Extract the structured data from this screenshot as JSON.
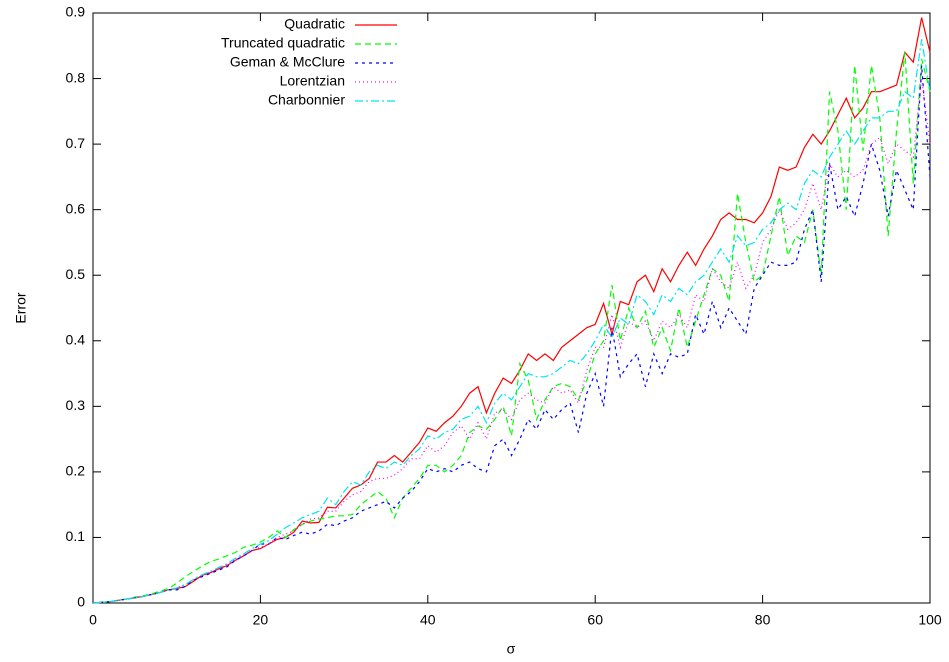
{
  "chart_data": {
    "type": "line",
    "xlabel": "σ",
    "ylabel": "Error",
    "xlim": [
      0,
      100
    ],
    "xticks": [
      0,
      20,
      40,
      60,
      80,
      100
    ],
    "ylim": [
      0,
      0.9
    ],
    "yticks": [
      0,
      0.1,
      0.2,
      0.3,
      0.4,
      0.5,
      0.6,
      0.7,
      0.8,
      0.9
    ],
    "legend": "upper-left",
    "x": [
      0,
      1,
      2,
      3,
      4,
      5,
      6,
      7,
      8,
      9,
      10,
      11,
      12,
      13,
      14,
      15,
      16,
      17,
      18,
      19,
      20,
      21,
      22,
      23,
      24,
      25,
      26,
      27,
      28,
      29,
      30,
      31,
      32,
      33,
      34,
      35,
      36,
      37,
      38,
      39,
      40,
      41,
      42,
      43,
      44,
      45,
      46,
      47,
      48,
      49,
      50,
      51,
      52,
      53,
      54,
      55,
      56,
      57,
      58,
      59,
      60,
      61,
      62,
      63,
      64,
      65,
      66,
      67,
      68,
      69,
      70,
      71,
      72,
      73,
      74,
      75,
      76,
      77,
      78,
      79,
      80,
      81,
      82,
      83,
      84,
      85,
      86,
      87,
      88,
      89,
      90,
      91,
      92,
      93,
      94,
      95,
      96,
      97,
      98,
      99,
      100
    ],
    "series": [
      {
        "name": "Quadratic",
        "color": "#ff0000",
        "values": [
          0,
          0.001,
          0.002,
          0.004,
          0.006,
          0.008,
          0.01,
          0.013,
          0.016,
          0.02,
          0.022,
          0.025,
          0.033,
          0.042,
          0.046,
          0.052,
          0.057,
          0.065,
          0.072,
          0.08,
          0.083,
          0.09,
          0.097,
          0.1,
          0.108,
          0.125,
          0.122,
          0.123,
          0.146,
          0.145,
          0.16,
          0.175,
          0.18,
          0.19,
          0.215,
          0.215,
          0.225,
          0.215,
          0.23,
          0.245,
          0.267,
          0.262,
          0.275,
          0.285,
          0.3,
          0.32,
          0.33,
          0.29,
          0.32,
          0.343,
          0.335,
          0.355,
          0.38,
          0.37,
          0.38,
          0.37,
          0.39,
          0.4,
          0.41,
          0.42,
          0.425,
          0.457,
          0.41,
          0.46,
          0.455,
          0.49,
          0.5,
          0.475,
          0.51,
          0.49,
          0.515,
          0.535,
          0.515,
          0.54,
          0.56,
          0.585,
          0.595,
          0.585,
          0.585,
          0.58,
          0.595,
          0.62,
          0.665,
          0.66,
          0.665,
          0.695,
          0.715,
          0.7,
          0.72,
          0.745,
          0.77,
          0.74,
          0.755,
          0.78,
          0.78,
          0.785,
          0.79,
          0.84,
          0.825,
          0.893,
          0.84
        ]
      },
      {
        "name": "Truncated quadratic",
        "color": "#00ff00",
        "values": [
          0,
          0.001,
          0.002,
          0.004,
          0.006,
          0.009,
          0.011,
          0.014,
          0.018,
          0.022,
          0.03,
          0.04,
          0.048,
          0.056,
          0.063,
          0.067,
          0.072,
          0.077,
          0.085,
          0.088,
          0.093,
          0.1,
          0.11,
          0.1,
          0.112,
          0.12,
          0.125,
          0.128,
          0.13,
          0.133,
          0.133,
          0.135,
          0.15,
          0.16,
          0.17,
          0.16,
          0.13,
          0.16,
          0.175,
          0.19,
          0.21,
          0.21,
          0.2,
          0.21,
          0.225,
          0.26,
          0.27,
          0.265,
          0.28,
          0.3,
          0.255,
          0.365,
          0.34,
          0.28,
          0.31,
          0.33,
          0.335,
          0.33,
          0.31,
          0.34,
          0.38,
          0.4,
          0.485,
          0.4,
          0.45,
          0.42,
          0.445,
          0.39,
          0.42,
          0.385,
          0.45,
          0.39,
          0.43,
          0.47,
          0.51,
          0.5,
          0.46,
          0.625,
          0.55,
          0.49,
          0.5,
          0.56,
          0.62,
          0.53,
          0.56,
          0.55,
          0.6,
          0.5,
          0.78,
          0.72,
          0.6,
          0.82,
          0.69,
          0.82,
          0.74,
          0.56,
          0.72,
          0.84,
          0.64,
          0.83,
          0.78
        ]
      },
      {
        "name": "Geman & McClure",
        "color": "#0000ff",
        "values": [
          0,
          0.001,
          0.002,
          0.004,
          0.006,
          0.008,
          0.01,
          0.013,
          0.016,
          0.02,
          0.02,
          0.025,
          0.035,
          0.04,
          0.045,
          0.05,
          0.055,
          0.065,
          0.072,
          0.08,
          0.09,
          0.09,
          0.1,
          0.097,
          0.103,
          0.108,
          0.105,
          0.11,
          0.12,
          0.118,
          0.125,
          0.13,
          0.14,
          0.145,
          0.15,
          0.155,
          0.145,
          0.16,
          0.17,
          0.185,
          0.205,
          0.2,
          0.205,
          0.2,
          0.21,
          0.215,
          0.205,
          0.2,
          0.24,
          0.25,
          0.225,
          0.25,
          0.28,
          0.265,
          0.295,
          0.28,
          0.295,
          0.305,
          0.26,
          0.32,
          0.35,
          0.3,
          0.42,
          0.345,
          0.365,
          0.38,
          0.33,
          0.38,
          0.35,
          0.38,
          0.375,
          0.38,
          0.44,
          0.41,
          0.46,
          0.42,
          0.45,
          0.43,
          0.41,
          0.48,
          0.5,
          0.52,
          0.515,
          0.515,
          0.52,
          0.57,
          0.6,
          0.49,
          0.67,
          0.6,
          0.62,
          0.59,
          0.64,
          0.7,
          0.66,
          0.59,
          0.66,
          0.63,
          0.6,
          0.82,
          0.65
        ]
      },
      {
        "name": "Lorentzian",
        "color": "#ff00ff",
        "values": [
          0,
          0.001,
          0.002,
          0.004,
          0.006,
          0.008,
          0.01,
          0.013,
          0.016,
          0.02,
          0.023,
          0.028,
          0.035,
          0.042,
          0.047,
          0.053,
          0.058,
          0.066,
          0.073,
          0.08,
          0.085,
          0.09,
          0.1,
          0.105,
          0.11,
          0.12,
          0.128,
          0.13,
          0.14,
          0.14,
          0.155,
          0.165,
          0.17,
          0.185,
          0.19,
          0.19,
          0.195,
          0.205,
          0.22,
          0.22,
          0.24,
          0.23,
          0.24,
          0.26,
          0.27,
          0.25,
          0.275,
          0.25,
          0.29,
          0.295,
          0.28,
          0.31,
          0.32,
          0.31,
          0.305,
          0.33,
          0.32,
          0.325,
          0.305,
          0.355,
          0.39,
          0.39,
          0.44,
          0.39,
          0.43,
          0.42,
          0.43,
          0.4,
          0.43,
          0.42,
          0.44,
          0.42,
          0.47,
          0.46,
          0.51,
          0.49,
          0.48,
          0.52,
          0.48,
          0.5,
          0.55,
          0.57,
          0.6,
          0.57,
          0.58,
          0.6,
          0.64,
          0.6,
          0.67,
          0.65,
          0.66,
          0.65,
          0.66,
          0.7,
          0.71,
          0.67,
          0.7,
          0.69,
          0.68,
          0.8,
          0.7
        ]
      },
      {
        "name": "Charbonnier",
        "color": "#00e5ee",
        "values": [
          0,
          0.001,
          0.002,
          0.004,
          0.006,
          0.008,
          0.01,
          0.013,
          0.016,
          0.02,
          0.023,
          0.028,
          0.036,
          0.043,
          0.048,
          0.054,
          0.06,
          0.068,
          0.075,
          0.083,
          0.09,
          0.095,
          0.105,
          0.115,
          0.122,
          0.13,
          0.135,
          0.14,
          0.16,
          0.15,
          0.17,
          0.185,
          0.18,
          0.2,
          0.21,
          0.205,
          0.215,
          0.21,
          0.225,
          0.235,
          0.255,
          0.25,
          0.26,
          0.265,
          0.28,
          0.285,
          0.3,
          0.275,
          0.305,
          0.32,
          0.31,
          0.33,
          0.35,
          0.345,
          0.345,
          0.35,
          0.36,
          0.37,
          0.365,
          0.38,
          0.4,
          0.425,
          0.405,
          0.435,
          0.425,
          0.47,
          0.46,
          0.44,
          0.47,
          0.46,
          0.48,
          0.47,
          0.49,
          0.5,
          0.52,
          0.54,
          0.52,
          0.56,
          0.545,
          0.55,
          0.57,
          0.58,
          0.6,
          0.61,
          0.6,
          0.64,
          0.66,
          0.65,
          0.68,
          0.7,
          0.72,
          0.7,
          0.72,
          0.74,
          0.74,
          0.75,
          0.75,
          0.78,
          0.77,
          0.86,
          0.78
        ]
      }
    ]
  }
}
